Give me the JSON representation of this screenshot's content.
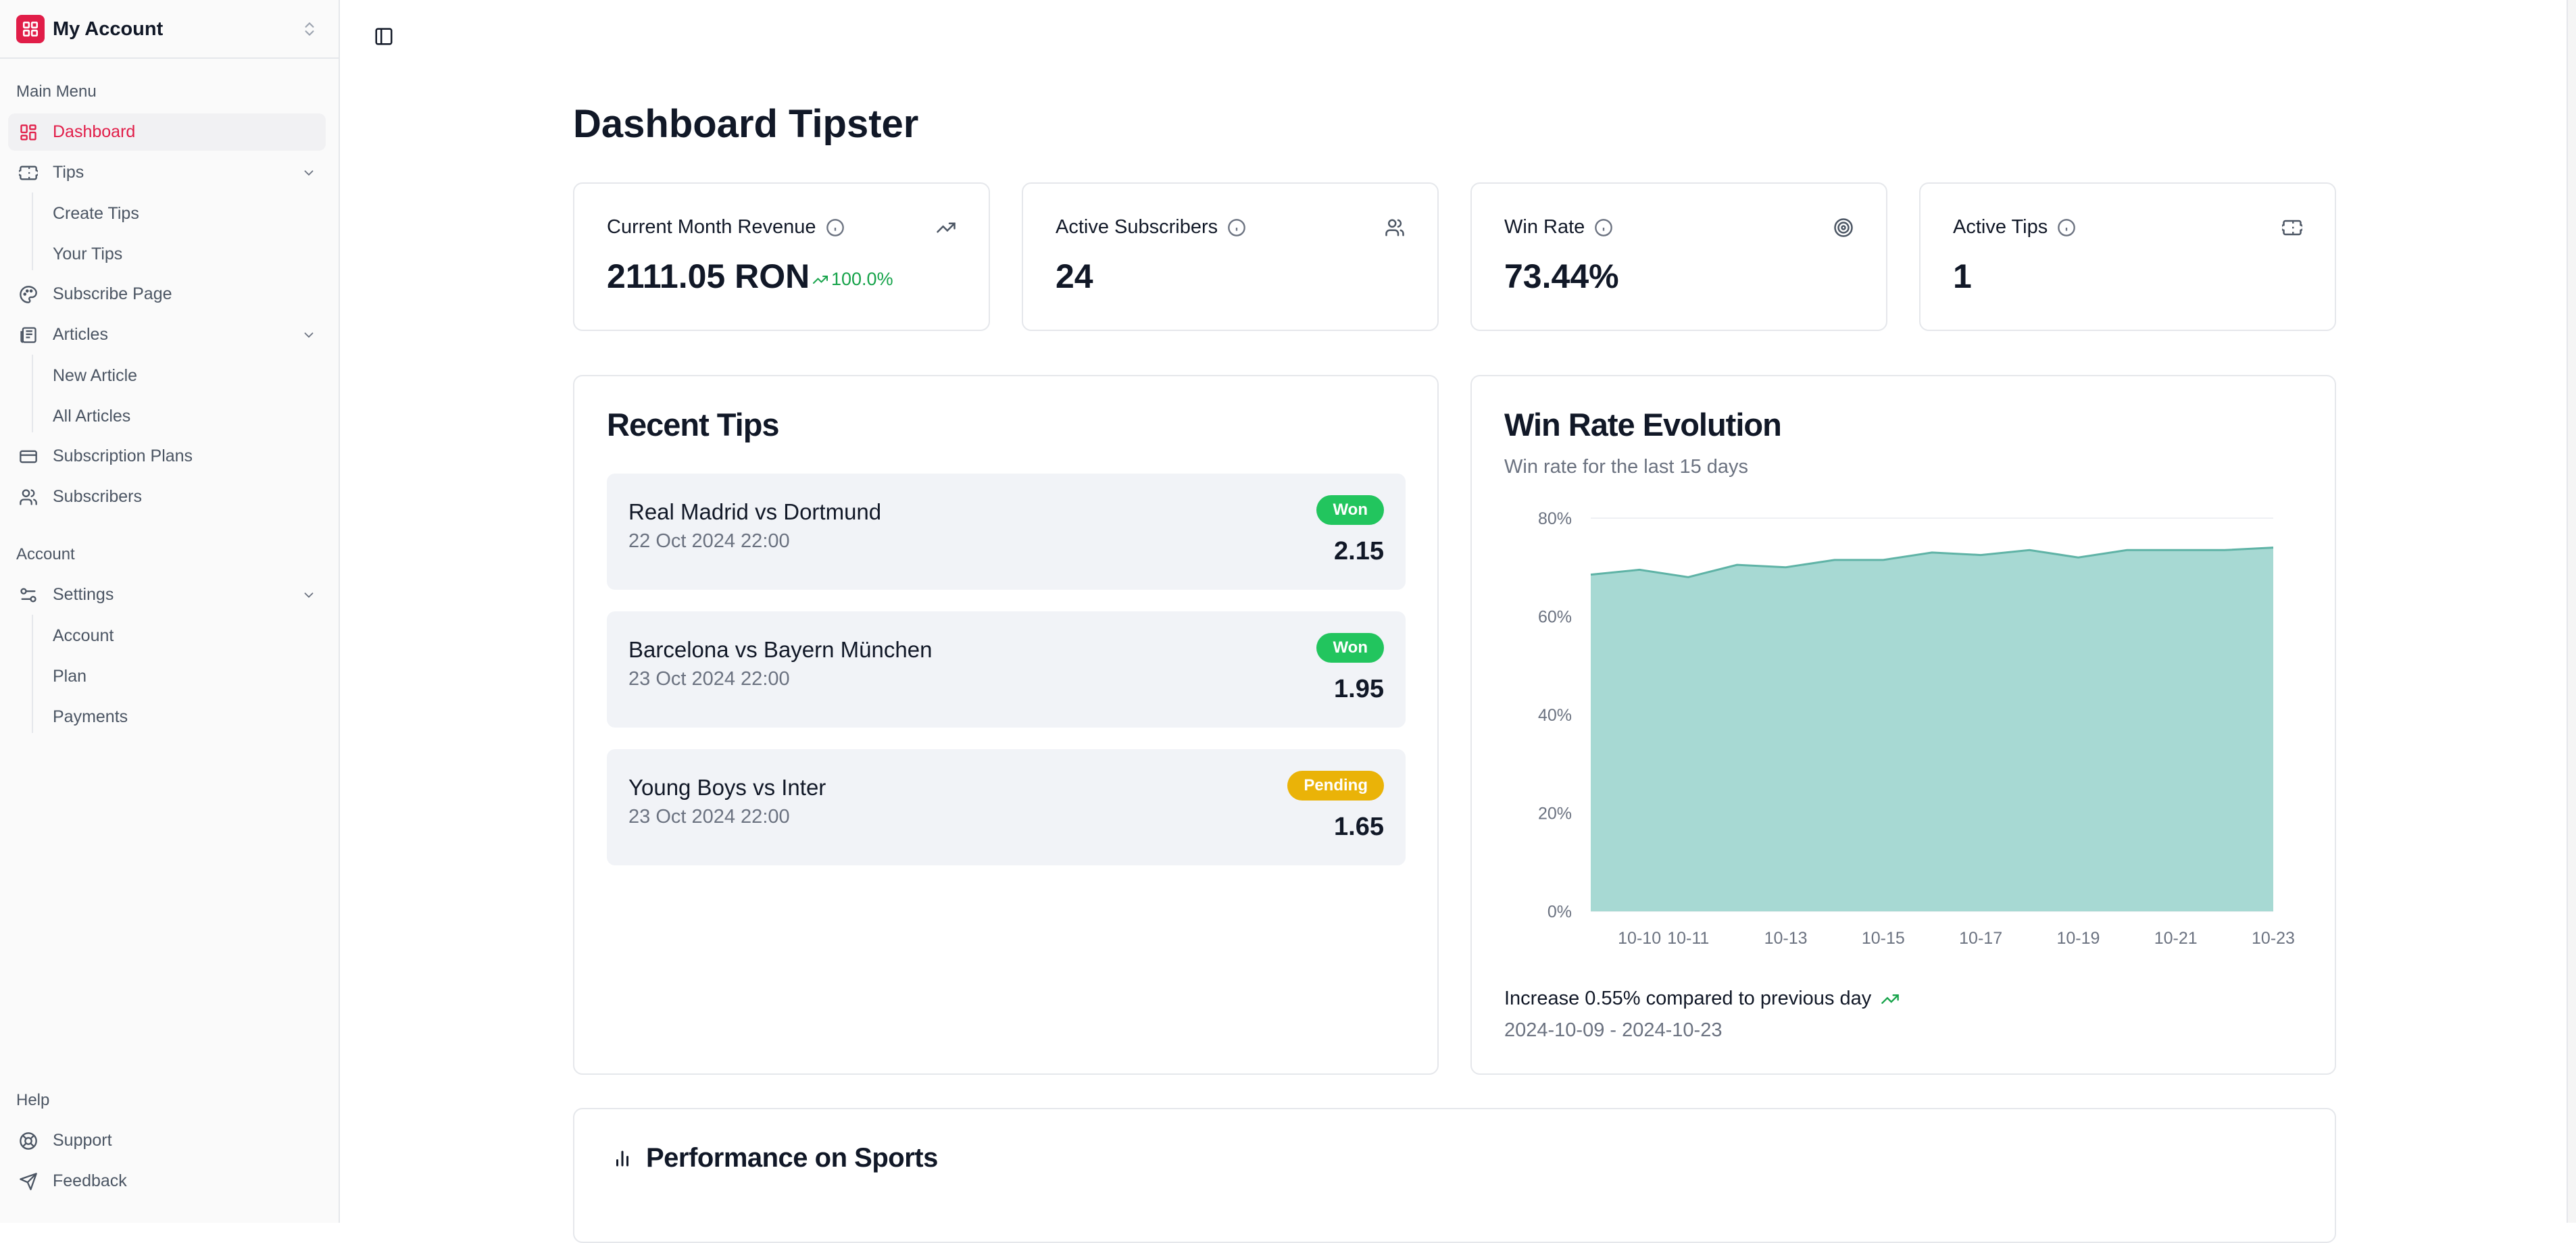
{
  "sidebar": {
    "account_name": "My Account",
    "main_menu_label": "Main Menu",
    "items": {
      "dashboard": "Dashboard",
      "tips": "Tips",
      "create_tips": "Create Tips",
      "your_tips": "Your Tips",
      "subscribe_page": "Subscribe Page",
      "articles": "Articles",
      "new_article": "New Article",
      "all_articles": "All Articles",
      "subscription_plans": "Subscription Plans",
      "subscribers": "Subscribers"
    },
    "account_label": "Account",
    "settings": {
      "label": "Settings",
      "account": "Account",
      "plan": "Plan",
      "payments": "Payments"
    },
    "help_label": "Help",
    "help": {
      "support": "Support",
      "feedback": "Feedback"
    }
  },
  "page": {
    "title": "Dashboard Tipster"
  },
  "stats": [
    {
      "title": "Current Month Revenue",
      "value": "2111.05 RON",
      "trend": "100.0%",
      "icon": "trending-up-icon"
    },
    {
      "title": "Active Subscribers",
      "value": "24",
      "icon": "users-icon"
    },
    {
      "title": "Win Rate",
      "value": "73.44%",
      "icon": "target-icon"
    },
    {
      "title": "Active Tips",
      "value": "1",
      "icon": "ticket-icon"
    }
  ],
  "recent_tips": {
    "title": "Recent Tips",
    "items": [
      {
        "match": "Real Madrid vs Dortmund",
        "date": "22 Oct 2024 22:00",
        "status": "Won",
        "odds": "2.15"
      },
      {
        "match": "Barcelona vs Bayern München",
        "date": "23 Oct 2024 22:00",
        "status": "Won",
        "odds": "1.95"
      },
      {
        "match": "Young Boys vs Inter",
        "date": "23 Oct 2024 22:00",
        "status": "Pending",
        "odds": "1.65"
      }
    ]
  },
  "colors": {
    "accent": "#e11d48",
    "won": "#22c55e",
    "pending": "#eab308",
    "chart_fill": "#a7d9d3",
    "chart_line": "#5fb3a6",
    "trend_up": "#16a34a"
  },
  "win_rate": {
    "title": "Win Rate Evolution",
    "subtitle": "Win rate for the last 15 days",
    "footer": "Increase 0.55% compared to previous day",
    "range": "2024-10-09 - 2024-10-23"
  },
  "chart_data": {
    "type": "area",
    "x": [
      "10-09",
      "10-10",
      "10-11",
      "10-12",
      "10-13",
      "10-14",
      "10-15",
      "10-16",
      "10-17",
      "10-18",
      "10-19",
      "10-20",
      "10-21",
      "10-22",
      "10-23"
    ],
    "values": [
      68.5,
      69.5,
      68.0,
      70.5,
      70.0,
      71.5,
      71.5,
      73.0,
      72.5,
      73.5,
      72.0,
      73.5,
      73.5,
      73.5,
      74.0
    ],
    "x_tick_labels": [
      "10-10",
      "10-11",
      "10-13",
      "10-15",
      "10-17",
      "10-19",
      "10-21",
      "10-23"
    ],
    "y_ticks": [
      "0%",
      "20%",
      "40%",
      "60%",
      "80%"
    ],
    "ylim": [
      0,
      80
    ],
    "grid": "horizontal"
  },
  "performance": {
    "title": "Performance on Sports"
  }
}
